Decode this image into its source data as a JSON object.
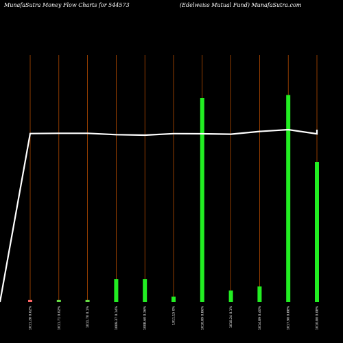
{
  "header": {
    "left": "MunafaSutra  Money Flow  Charts for 544573",
    "right": "(Edelweiss Mutual Fund) MunafaSutra.com"
  },
  "chart_data": {
    "type": "bar",
    "title": "MunafaSutra  Money Flow  Charts for 544573",
    "subtitle": "(Edelweiss Mutual Fund) MunafaSutra.com",
    "categories": [
      "1011.28 0.62%",
      "1011.71 0.02%",
      "1011.70 0.1%",
      "1009.37 0.14%",
      "1008.60 0.36%",
      "1011.15 0%",
      "1010.89 0.86%",
      "1010.24 0.1%",
      "1014.89 0.40%",
      "1017.90 0.88%",
      "1010.80 0.08%"
    ],
    "series": [
      {
        "values": [
          1,
          1,
          1,
          11,
          11,
          2.5,
          99,
          5.5,
          7.5,
          100.5,
          68
        ],
        "colors": [
          "#ff6666",
          "#66dd44",
          "#66dd44",
          "#22ee22",
          "#22ee22",
          "#22ee22",
          "#22ee22",
          "#22ee22",
          "#22ee22",
          "#22ee22",
          "#22ee22"
        ]
      }
    ],
    "line": {
      "color": "#ffffff",
      "values": [
        1011.28,
        1011.71,
        1011.7,
        1009.37,
        1008.6,
        1011.15,
        1010.89,
        1010.24,
        1014.89,
        1017.9,
        1010.8
      ]
    },
    "ylim": [
      0,
      100
    ],
    "grid": false,
    "colors": {
      "background": "#000000",
      "gridline": "#cc5500",
      "text": "#ffffff"
    }
  }
}
